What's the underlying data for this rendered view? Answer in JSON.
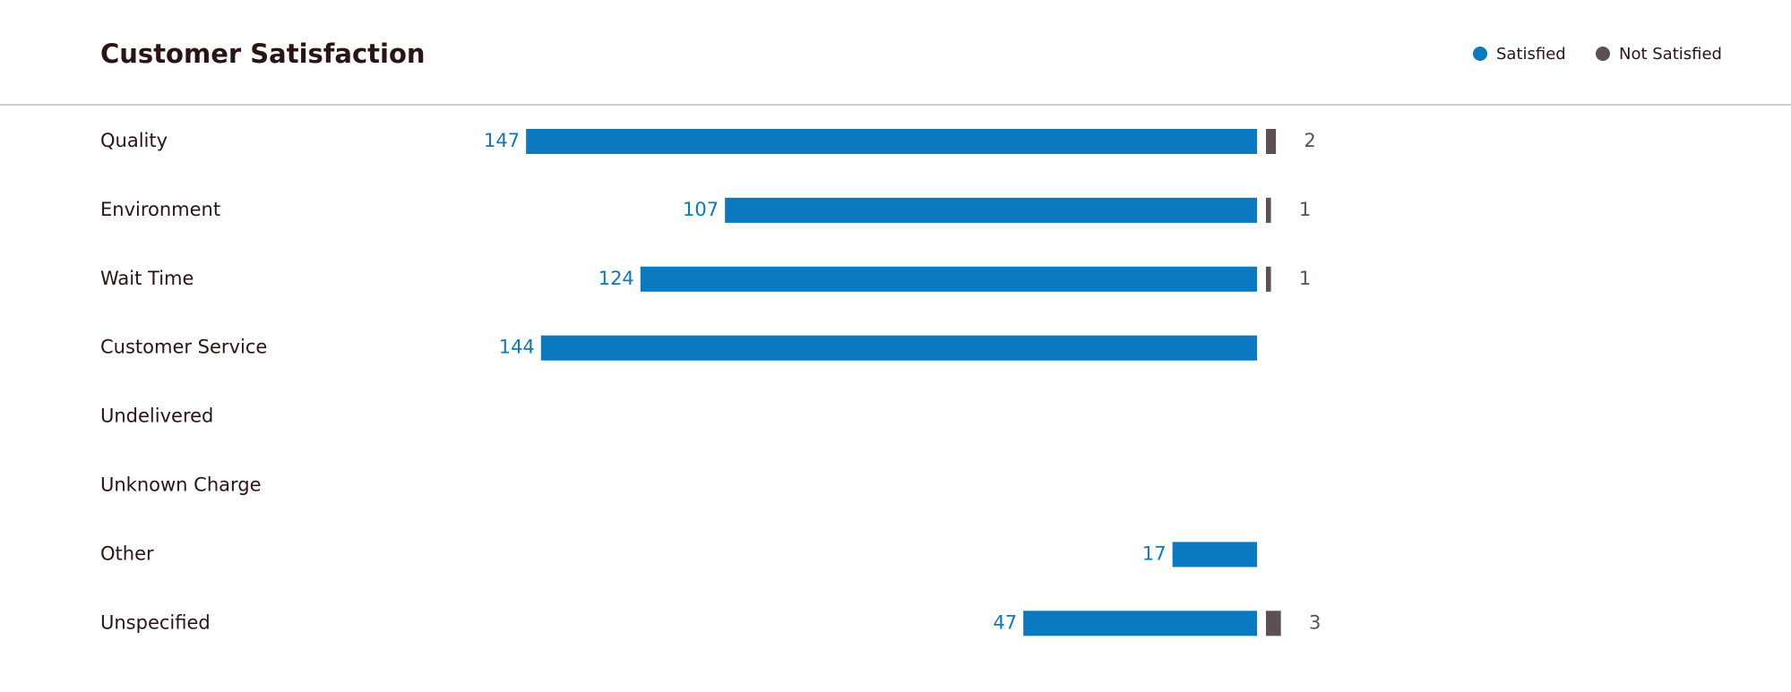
{
  "chart_data": {
    "type": "diverging-bar",
    "title": "Customer Satisfaction",
    "categories": [
      "Quality",
      "Environment",
      "Wait Time",
      "Customer Service",
      "Undelivered",
      "Unknown Charge",
      "Other",
      "Unspecified"
    ],
    "series": [
      {
        "name": "Satisfied",
        "color": "#0b79bf",
        "values": [
          147,
          107,
          124,
          144,
          null,
          null,
          17,
          47
        ]
      },
      {
        "name": "Not Satisfied",
        "color": "#5c5052",
        "values": [
          2,
          1,
          1,
          null,
          null,
          null,
          null,
          3
        ]
      }
    ],
    "legend": "top-right"
  }
}
